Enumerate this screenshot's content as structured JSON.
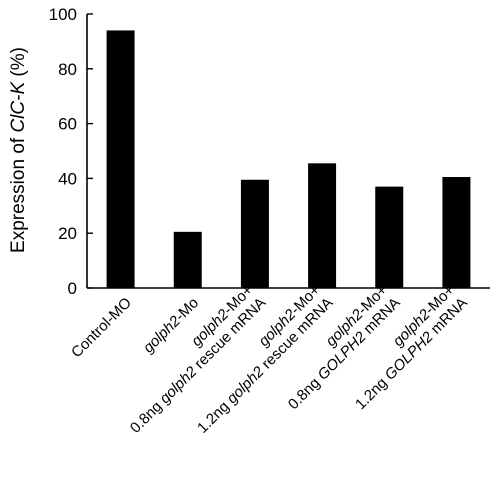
{
  "chart_data": {
    "type": "bar",
    "title": "",
    "ylabel": {
      "prefix": "Expression of ",
      "italic": "ClC-K",
      "suffix": " (%)"
    },
    "xlabel": "",
    "ylim": [
      0,
      100
    ],
    "yticks": [
      0,
      20,
      40,
      60,
      80,
      100
    ],
    "grid": false,
    "bar_color": "#000000",
    "categories": [
      {
        "lines": [
          [
            {
              "t": "Control-MO",
              "i": false
            }
          ]
        ]
      },
      {
        "lines": [
          [
            {
              "t": "golph2",
              "i": true
            },
            {
              "t": "-Mo",
              "i": false
            }
          ]
        ]
      },
      {
        "lines": [
          [
            {
              "t": "golph2",
              "i": true
            },
            {
              "t": "-Mo+",
              "i": false
            }
          ],
          [
            {
              "t": "0.8ng ",
              "i": false
            },
            {
              "t": "golph2",
              "i": true
            },
            {
              "t": " rescue mRNA",
              "i": false
            }
          ]
        ]
      },
      {
        "lines": [
          [
            {
              "t": "golph2",
              "i": true
            },
            {
              "t": "-Mo+",
              "i": false
            }
          ],
          [
            {
              "t": "1.2ng ",
              "i": false
            },
            {
              "t": "golph2",
              "i": true
            },
            {
              "t": " rescue mRNA",
              "i": false
            }
          ]
        ]
      },
      {
        "lines": [
          [
            {
              "t": "golph2",
              "i": true
            },
            {
              "t": "-Mo+",
              "i": false
            }
          ],
          [
            {
              "t": "0.8ng ",
              "i": false
            },
            {
              "t": "GOLPH2",
              "i": true
            },
            {
              "t": " mRNA",
              "i": false
            }
          ]
        ]
      },
      {
        "lines": [
          [
            {
              "t": "golph2",
              "i": true
            },
            {
              "t": "-Mo+",
              "i": false
            }
          ],
          [
            {
              "t": "1.2ng ",
              "i": false
            },
            {
              "t": "GOLPH2",
              "i": true
            },
            {
              "t": " mRNA",
              "i": false
            }
          ]
        ]
      }
    ],
    "values": [
      94,
      20.5,
      39.5,
      45.5,
      37,
      40.5
    ]
  }
}
